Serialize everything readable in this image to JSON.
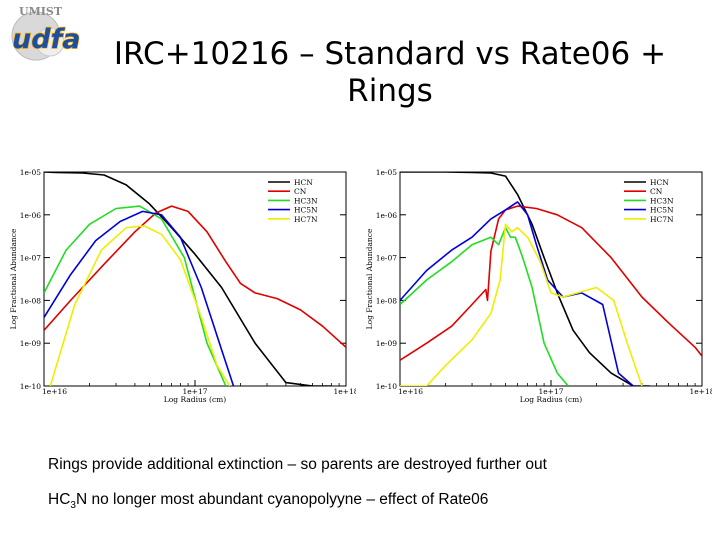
{
  "logo": {
    "top_text": "UMIST",
    "main_text": "udfa"
  },
  "title": {
    "line1": "IRC+10216 – Standard vs Rate06 +",
    "line2": "Rings"
  },
  "captions": {
    "line1": "Rings provide additional extinction – so parents are destroyed further out",
    "line2_prefix": "HC",
    "line2_sub": "3",
    "line2_suffix": "N no longer most abundant cyanopolyyne – effect of Rate06"
  },
  "colors": {
    "HCN": "#000000",
    "CN": "#e00000",
    "HC3N": "#22dd22",
    "HC5N": "#0000dd",
    "HC7N": "#eeee00"
  },
  "chart_data": [
    {
      "type": "line",
      "panel": "Standard",
      "xlabel": "Log Radius (cm)",
      "ylabel": "Log Fractional Abundance",
      "x_scale": "log",
      "y_scale": "log",
      "xlim": [
        1e+16,
        1e+18
      ],
      "ylim": [
        1e-10,
        1e-05
      ],
      "x_tick_labels": [
        "1e+16",
        "1e+17",
        "1e+18"
      ],
      "y_tick_labels": [
        "1e-05",
        "1e-06",
        "1e-07",
        "1e-08",
        "1e-09",
        "1e-10"
      ],
      "legend": [
        "HCN",
        "CN",
        "HC3N",
        "HC5N",
        "HC7N"
      ],
      "legend_position": "top-right",
      "series": [
        {
          "name": "HCN",
          "x": [
            1e+16,
            1.2e+16,
            1.8e+16,
            2.5e+16,
            3.5e+16,
            5e+16,
            7e+16,
            1e+17,
            1.5e+17,
            2.5e+17,
            4e+17,
            6e+17,
            8e+17
          ],
          "y": [
            1e-05,
            9.8e-06,
            9.5e-06,
            8.5e-06,
            5e-06,
            1.8e-06,
            5e-07,
            1.2e-07,
            2e-08,
            1e-09,
            1.2e-10,
            1e-10,
            1e-10
          ]
        },
        {
          "name": "CN",
          "x": [
            1e+16,
            1.5e+16,
            2.5e+16,
            4e+16,
            5.5e+16,
            7e+16,
            9e+16,
            1.2e+17,
            1.6e+17,
            2e+17,
            2.5e+17,
            3.5e+17,
            5e+17,
            7e+17,
            1e+18
          ],
          "y": [
            2e-09,
            1e-08,
            7e-08,
            4e-07,
            1.1e-06,
            1.6e-06,
            1.2e-06,
            4e-07,
            8e-08,
            2.5e-08,
            1.5e-08,
            1.1e-08,
            6e-09,
            2.5e-09,
            8e-10
          ]
        },
        {
          "name": "HC3N",
          "x": [
            1e+16,
            1.4e+16,
            2e+16,
            3e+16,
            4.3e+16,
            6e+16,
            8.5e+16,
            1.2e+17,
            1.6e+17
          ],
          "y": [
            1.5e-08,
            1.5e-07,
            6e-07,
            1.4e-06,
            1.6e-06,
            8e-07,
            1e-07,
            1e-09,
            1e-10
          ]
        },
        {
          "name": "HC5N",
          "x": [
            1e+16,
            1.5e+16,
            2.2e+16,
            3.2e+16,
            4.5e+16,
            6e+16,
            8e+16,
            1.1e+17,
            1.5e+17,
            1.8e+17
          ],
          "y": [
            4e-09,
            4e-08,
            2.5e-07,
            7e-07,
            1.2e-06,
            1e-06,
            3e-07,
            2e-08,
            7e-10,
            1e-10
          ]
        },
        {
          "name": "HC7N",
          "x": [
            1.1e+16,
            1.6e+16,
            2.4e+16,
            3.5e+16,
            4.6e+16,
            6e+16,
            8e+16,
            1.1e+17,
            1.4e+17,
            1.7e+17
          ],
          "y": [
            1e-10,
            8e-09,
            1.5e-07,
            5e-07,
            5.5e-07,
            3.5e-07,
            9e-08,
            4e-09,
            3e-10,
            1e-10
          ]
        }
      ]
    },
    {
      "type": "line",
      "panel": "Rate06 + Rings",
      "xlabel": "Log Radius (cm)",
      "ylabel": "Log Fractional Abundance",
      "x_scale": "log",
      "y_scale": "log",
      "xlim": [
        1e+16,
        1e+18
      ],
      "ylim": [
        1e-10,
        1e-05
      ],
      "x_tick_labels": [
        "1e+16",
        "1e+17",
        "1e+18"
      ],
      "y_tick_labels": [
        "1e-05",
        "1e-06",
        "1e-07",
        "1e-08",
        "1e-09",
        "1e-10"
      ],
      "legend": [
        "HCN",
        "CN",
        "HC3N",
        "HC5N",
        "HC7N"
      ],
      "legend_position": "top-right",
      "series": [
        {
          "name": "HCN",
          "x": [
            1e+16,
            2e+16,
            3e+16,
            4e+16,
            5e+16,
            6e+16,
            7.5e+16,
            9e+16,
            1.1e+17,
            1.4e+17,
            1.8e+17,
            2.5e+17,
            3.5e+17,
            4.5e+17
          ],
          "y": [
            1e-05,
            1e-05,
            9.8e-06,
            9.5e-06,
            8e-06,
            3e-06,
            6e-07,
            1e-07,
            1.5e-08,
            2e-09,
            6e-10,
            2e-10,
            1e-10,
            1e-10
          ]
        },
        {
          "name": "CN",
          "x": [
            1e+16,
            1.5e+16,
            2.2e+16,
            3e+16,
            3.7e+16,
            3.8e+16,
            4e+16,
            4.5e+16,
            5e+16,
            6e+16,
            8e+16,
            1.1e+17,
            1.6e+17,
            2.5e+17,
            4e+17,
            6e+17,
            9e+17,
            1e+18
          ],
          "y": [
            4e-10,
            1e-09,
            2.5e-09,
            8e-09,
            1.8e-08,
            1e-08,
            1.4e-07,
            8e-07,
            1.3e-06,
            1.6e-06,
            1.4e-06,
            1e-06,
            5e-07,
            1e-07,
            1.2e-08,
            3e-09,
            8e-10,
            5e-10
          ]
        },
        {
          "name": "HC3N",
          "x": [
            1e+16,
            1.5e+16,
            2.2e+16,
            3e+16,
            4e+16,
            4.5e+16,
            5e+16,
            5.4e+16,
            5.8e+16,
            6.5e+16,
            7.5e+16,
            9e+16,
            1.1e+17,
            1.3e+17
          ],
          "y": [
            8e-09,
            3e-08,
            8e-08,
            2e-07,
            3e-07,
            2e-07,
            5e-07,
            3e-07,
            3e-07,
            1e-07,
            2e-08,
            1e-09,
            2e-10,
            1e-10
          ]
        },
        {
          "name": "HC5N",
          "x": [
            1e+16,
            1.5e+16,
            2.2e+16,
            3e+16,
            4e+16,
            5e+16,
            6e+16,
            7e+16,
            8e+16,
            9.5e+16,
            1.2e+17,
            1.6e+17,
            2.2e+17,
            2.8e+17,
            3.5e+17
          ],
          "y": [
            1e-08,
            5e-08,
            1.5e-07,
            3e-07,
            8e-07,
            1.3e-06,
            2e-06,
            1e-06,
            2e-07,
            3e-08,
            1.2e-08,
            1.5e-08,
            8e-09,
            2e-10,
            1e-10
          ]
        },
        {
          "name": "HC7N",
          "x": [
            1e+16,
            1.5e+16,
            2e+16,
            3e+16,
            4e+16,
            4.6e+16,
            5e+16,
            5.5e+16,
            6e+16,
            7e+16,
            8.5e+16,
            1e+17,
            1.2e+17,
            1.5e+17,
            2e+17,
            2.6e+17,
            3.2e+17,
            4e+17
          ],
          "y": [
            1e-10,
            1e-10,
            3e-10,
            1.2e-09,
            5e-09,
            3e-08,
            6e-07,
            4e-07,
            5e-07,
            3e-07,
            8e-08,
            1.5e-08,
            1.2e-08,
            1.5e-08,
            2e-08,
            1e-08,
            1e-09,
            1e-10
          ]
        }
      ]
    }
  ]
}
